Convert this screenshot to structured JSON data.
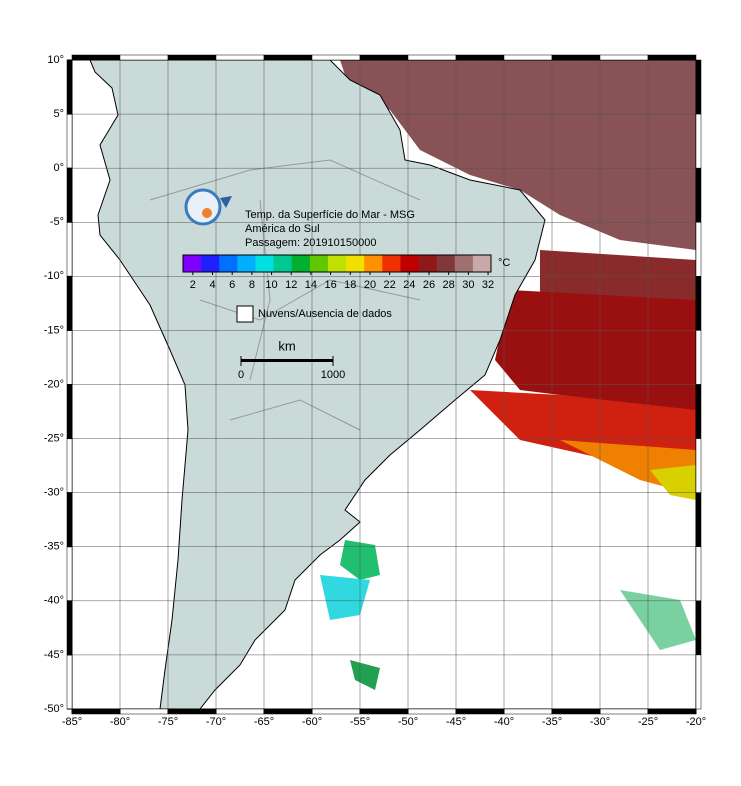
{
  "map": {
    "title_lines": [
      "Temp. da Superfície do Mar - MSG",
      "América do Sul",
      "Passagem: 201910150000"
    ],
    "xlim": [
      -85,
      -20
    ],
    "ylim": [
      -50,
      10
    ],
    "xticks": [
      {
        "value": -85,
        "label": "-85°"
      },
      {
        "value": -80,
        "label": "-80°"
      },
      {
        "value": -75,
        "label": "-75°"
      },
      {
        "value": -70,
        "label": "-70°"
      },
      {
        "value": -65,
        "label": "-65°"
      },
      {
        "value": -60,
        "label": "-60°"
      },
      {
        "value": -55,
        "label": "-55°"
      },
      {
        "value": -50,
        "label": "-50°"
      },
      {
        "value": -45,
        "label": "-45°"
      },
      {
        "value": -40,
        "label": "-40°"
      },
      {
        "value": -35,
        "label": "-35°"
      },
      {
        "value": -30,
        "label": "-30°"
      },
      {
        "value": -25,
        "label": "-25°"
      },
      {
        "value": -20,
        "label": "-20°"
      }
    ],
    "yticks": [
      {
        "value": 10,
        "label": "10°"
      },
      {
        "value": 5,
        "label": "5°"
      },
      {
        "value": 0,
        "label": "0°"
      },
      {
        "value": -5,
        "label": "-5°"
      },
      {
        "value": -10,
        "label": "-10°"
      },
      {
        "value": -15,
        "label": "-15°"
      },
      {
        "value": -20,
        "label": "-20°"
      },
      {
        "value": -25,
        "label": "-25°"
      },
      {
        "value": -30,
        "label": "-30°"
      },
      {
        "value": -35,
        "label": "-35°"
      },
      {
        "value": -40,
        "label": "-40°"
      },
      {
        "value": -45,
        "label": "-45°"
      },
      {
        "value": -50,
        "label": "-50°"
      }
    ],
    "grid": true
  },
  "colorbar": {
    "unit": "°C",
    "lim": [
      1,
      32.3
    ],
    "ticks": [
      2,
      4,
      6,
      8,
      10,
      12,
      14,
      16,
      18,
      20,
      22,
      24,
      26,
      28,
      30,
      32
    ],
    "colors": [
      "#8000ff",
      "#2020ff",
      "#0070ff",
      "#00b0ff",
      "#00e0e0",
      "#00c890",
      "#00b030",
      "#60c800",
      "#c0e000",
      "#f0e000",
      "#ff9000",
      "#f03000",
      "#c00000",
      "#901818",
      "#803838",
      "#a07070",
      "#c8a8a8"
    ]
  },
  "legend": {
    "label": "Nuvens/Ausencia de dados"
  },
  "scale_bar": {
    "unit": "km",
    "ticks": [
      0,
      1000
    ]
  }
}
